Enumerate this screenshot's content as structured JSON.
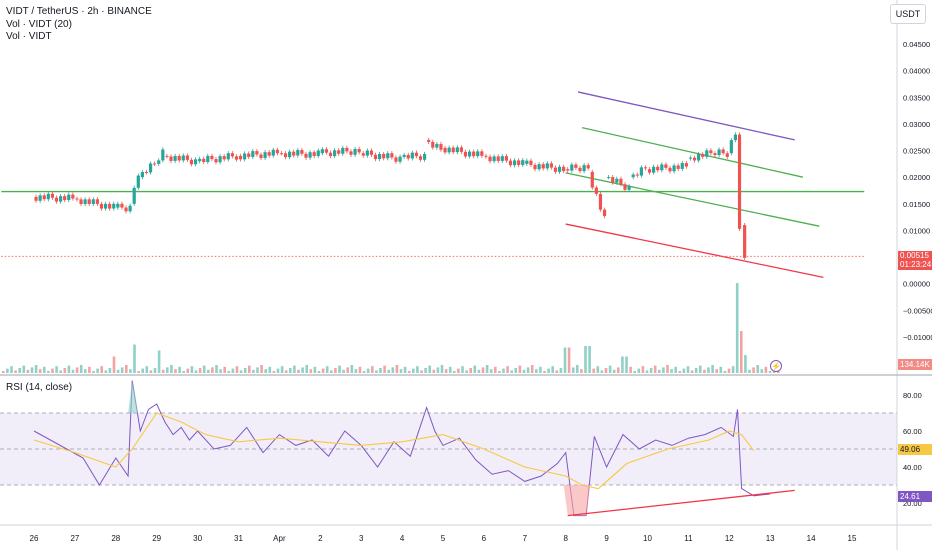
{
  "header": {
    "title": "VIDT / TetherUS · 2h · BINANCE",
    "vol_ma": "Vol · VIDT (20)",
    "vol": "Vol · VIDT",
    "currency_button": "USDT"
  },
  "price_badge": {
    "price": "0.00515",
    "countdown": "01:23:24"
  },
  "volume_badge": "134.14K",
  "rsi": {
    "title": "RSI (14, close)",
    "ma_value": "49.06",
    "rsi_value": "24.61"
  },
  "colors": {
    "up": "#26a69a",
    "down": "#ef5350",
    "rsi_line": "#7e57c2",
    "rsi_ma": "#f7c843",
    "channel_top": "#7e57c2",
    "channel_mid": "#4caf50",
    "channel_bottom": "#f23645",
    "horizontal_line": "#4caf50",
    "band_fill": "#ede7f6"
  },
  "chart_data": [
    {
      "type": "candlestick",
      "title": "VIDT / TetherUS · 2h · BINANCE",
      "ylabel": "USDT",
      "ylim": [
        -0.0145,
        0.0475
      ],
      "y_ticks": [
        "0.04500",
        "0.04000",
        "0.03500",
        "0.03000",
        "0.02500",
        "0.02000",
        "0.01500",
        "0.01000",
        "0.00500",
        "0.00000",
        "−0.00500",
        "−0.01000"
      ],
      "x_tick_labels": [
        "26",
        "27",
        "28",
        "29",
        "30",
        "31",
        "Apr",
        "2",
        "3",
        "4",
        "5",
        "6",
        "7",
        "8",
        "9",
        "10",
        "11",
        "12",
        "13",
        "14",
        "15"
      ],
      "price_segments": [
        {
          "x": [
            0,
            1
          ],
          "y": [
            0.0163,
            0.016
          ]
        },
        {
          "x": [
            1,
            2
          ],
          "y": [
            0.016,
            0.0143
          ]
        },
        {
          "x": [
            2,
            2.4
          ],
          "y": [
            0.0143,
            0.0143
          ]
        },
        {
          "x": [
            2.4,
            2.6
          ],
          "y": [
            0.015,
            0.021
          ]
        },
        {
          "x": [
            2.6,
            3.0
          ],
          "y": [
            0.02,
            0.0225
          ]
        },
        {
          "x": [
            3.0,
            3.2
          ],
          "y": [
            0.0225,
            0.0245
          ]
        },
        {
          "x": [
            3.2,
            4.0
          ],
          "y": [
            0.024,
            0.023
          ]
        },
        {
          "x": [
            4.0,
            5.0
          ],
          "y": [
            0.023,
            0.024
          ]
        },
        {
          "x": [
            5.0,
            6.0
          ],
          "y": [
            0.024,
            0.0245
          ]
        },
        {
          "x": [
            6.0,
            7.0
          ],
          "y": [
            0.0245,
            0.0243
          ]
        },
        {
          "x": [
            7.0,
            8.0
          ],
          "y": [
            0.0245,
            0.025
          ]
        },
        {
          "x": [
            8.0,
            9.0
          ],
          "y": [
            0.0245,
            0.0235
          ]
        },
        {
          "x": [
            9.0,
            9.6
          ],
          "y": [
            0.0238,
            0.024
          ]
        },
        {
          "x": [
            9.6,
            10.0
          ],
          "y": [
            0.027,
            0.0255
          ]
        },
        {
          "x": [
            10.0,
            11.0
          ],
          "y": [
            0.0255,
            0.024
          ]
        },
        {
          "x": [
            11.0,
            12.0
          ],
          "y": [
            0.024,
            0.0225
          ]
        },
        {
          "x": [
            12.0,
            13.0
          ],
          "y": [
            0.0225,
            0.0215
          ]
        },
        {
          "x": [
            13.0,
            13.6
          ],
          "y": [
            0.0215,
            0.022
          ]
        },
        {
          "x": [
            13.6,
            14.0
          ],
          "y": [
            0.021,
            0.012
          ]
        },
        {
          "x": [
            14.0,
            14.6
          ],
          "y": [
            0.02,
            0.018
          ]
        },
        {
          "x": [
            14.6,
            15.0
          ],
          "y": [
            0.02,
            0.022
          ]
        },
        {
          "x": [
            15.0,
            16.0
          ],
          "y": [
            0.0215,
            0.022
          ]
        },
        {
          "x": [
            16.0,
            16.6
          ],
          "y": [
            0.0235,
            0.0245
          ]
        },
        {
          "x": [
            16.6,
            17.0
          ],
          "y": [
            0.0245,
            0.0245
          ]
        },
        {
          "x": [
            17.0,
            17.2
          ],
          "y": [
            0.0245,
            0.028
          ]
        },
        {
          "x": [
            17.2,
            17.3
          ],
          "y": [
            0.028,
            0.011
          ]
        },
        {
          "x": [
            17.3,
            17.45
          ],
          "y": [
            0.011,
            0.0052
          ]
        }
      ],
      "volume_spikes": [
        {
          "x": 1.95,
          "v": 0.55
        },
        {
          "x": 2.4,
          "v": 0.95
        },
        {
          "x": 3.0,
          "v": 0.75
        },
        {
          "x": 13.0,
          "v": 0.85
        },
        {
          "x": 13.5,
          "v": 0.9
        },
        {
          "x": 14.4,
          "v": 0.55
        },
        {
          "x": 17.2,
          "v": 3.0
        },
        {
          "x": 17.3,
          "v": 1.4
        },
        {
          "x": 17.4,
          "v": 0.6
        }
      ],
      "drawings": [
        {
          "name": "channel-top",
          "color": "#7e57c2",
          "x": [
            13.3,
            18.6
          ],
          "y": [
            0.036,
            0.027
          ]
        },
        {
          "name": "channel-mid-upper",
          "color": "#4caf50",
          "x": [
            13.4,
            18.8
          ],
          "y": [
            0.0293,
            0.02
          ]
        },
        {
          "name": "channel-mid-lower",
          "color": "#4caf50",
          "x": [
            13.0,
            19.2
          ],
          "y": [
            0.0208,
            0.0108
          ]
        },
        {
          "name": "channel-bottom",
          "color": "#f23645",
          "x": [
            13.0,
            19.3
          ],
          "y": [
            0.0112,
            0.0012
          ]
        },
        {
          "name": "horizontal-support",
          "color": "#4caf50",
          "x": [
            -0.8,
            20.3
          ],
          "y": [
            0.0173,
            0.0173
          ]
        },
        {
          "name": "current-price",
          "color": "#ef5350",
          "x": [
            -0.8,
            20.3
          ],
          "y": [
            0.00515,
            0.00515
          ],
          "dotted": true
        }
      ]
    },
    {
      "type": "line",
      "title": "RSI (14, close)",
      "ylim": [
        10,
        90
      ],
      "y_ticks": [
        "80.00",
        "60.00",
        "40.00",
        "20.00"
      ],
      "band": [
        30,
        70
      ],
      "series": [
        {
          "name": "RSI",
          "x": [
            0,
            0.4,
            0.8,
            1.2,
            1.6,
            2.0,
            2.3,
            2.4,
            2.6,
            2.8,
            3.0,
            3.2,
            3.4,
            3.6,
            3.8,
            4.0,
            4.4,
            4.8,
            5.2,
            5.6,
            6.0,
            6.4,
            6.8,
            7.2,
            7.6,
            8.0,
            8.4,
            8.8,
            9.2,
            9.6,
            9.8,
            10.0,
            10.4,
            10.8,
            11.2,
            11.6,
            12.0,
            12.4,
            12.8,
            13.0,
            13.2,
            13.5,
            13.7,
            14.0,
            14.4,
            14.8,
            15.2,
            15.6,
            16.0,
            16.4,
            16.8,
            17.1,
            17.2,
            17.3,
            17.6,
            18.0
          ],
          "y": [
            60,
            55,
            50,
            45,
            30,
            45,
            35,
            88,
            60,
            72,
            75,
            65,
            58,
            62,
            55,
            60,
            50,
            52,
            62,
            48,
            58,
            52,
            55,
            46,
            60,
            52,
            40,
            54,
            46,
            73,
            60,
            52,
            56,
            44,
            36,
            38,
            32,
            35,
            42,
            48,
            13,
            13,
            57,
            40,
            58,
            50,
            55,
            52,
            56,
            58,
            62,
            57,
            72,
            28,
            24,
            25
          ]
        },
        {
          "name": "RSI-based MA",
          "x": [
            0,
            1,
            2,
            2.4,
            3.0,
            3.6,
            4.2,
            5.0,
            6.0,
            7.0,
            8.0,
            9.0,
            10.0,
            11.0,
            12.0,
            13.0,
            13.4,
            13.8,
            14.5,
            15.5,
            16.5,
            17.0,
            17.3,
            17.6
          ],
          "y": [
            55,
            48,
            40,
            50,
            70,
            65,
            58,
            54,
            56,
            54,
            52,
            54,
            58,
            50,
            40,
            35,
            30,
            28,
            42,
            50,
            55,
            60,
            58,
            49
          ]
        }
      ],
      "divergence_line": {
        "x": [
          13.05,
          18.6
        ],
        "y": [
          13,
          27
        ]
      }
    }
  ]
}
